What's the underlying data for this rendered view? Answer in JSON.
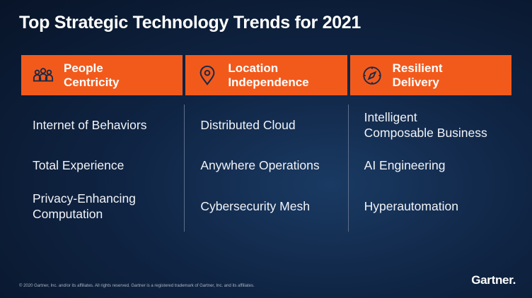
{
  "title": "Top Strategic Technology Trends for 2021",
  "columns": [
    {
      "header": "People\nCentricity",
      "icon": "people-icon",
      "items": [
        "Internet of Behaviors",
        "Total Experience",
        "Privacy-Enhancing\nComputation"
      ]
    },
    {
      "header": "Location\nIndependence",
      "icon": "location-pin-icon",
      "items": [
        "Distributed Cloud",
        "Anywhere Operations",
        "Cybersecurity Mesh"
      ]
    },
    {
      "header": "Resilient\nDelivery",
      "icon": "compass-icon",
      "items": [
        "Intelligent\nComposable Business",
        "AI Engineering",
        "Hyperautomation"
      ]
    }
  ],
  "footer": {
    "copyright": "© 2020 Gartner, Inc. and/or its affiliates. All rights reserved. Gartner is a registered trademark of Gartner, Inc. and its affiliates.",
    "logo": "Gartner."
  },
  "colors": {
    "accent": "#f25a1c",
    "background": "#0f2443"
  }
}
